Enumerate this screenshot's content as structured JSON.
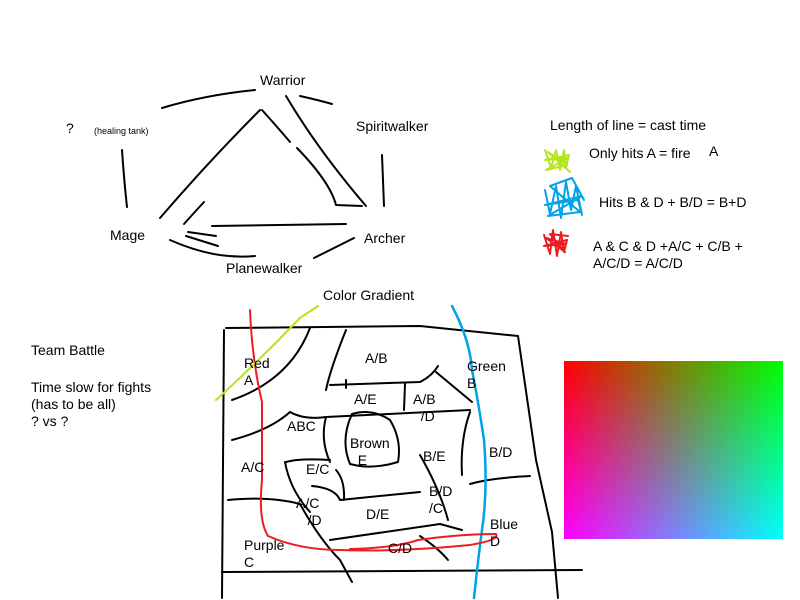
{
  "top_diagram": {
    "warrior": "Warrior",
    "spiritwalker": "Spiritwalker",
    "archer": "Archer",
    "planewalker": "Planewalker",
    "mage": "Mage",
    "unknown": "?",
    "unknown_note": "(healing tank)"
  },
  "legend": {
    "title": "Length of line = cast time",
    "items": [
      {
        "text": "Only hits A = fire",
        "suffix": "A",
        "color": "#b5e61d"
      },
      {
        "text": "Hits B & D + B/D = B+D",
        "color": "#00a2e8"
      },
      {
        "text": "A & C & D +A/C + C/B +\nA/C/D = A/C/D",
        "color": "#ed1c24"
      }
    ]
  },
  "gradient_title": "Color Gradient",
  "team_battle": "Team Battle",
  "time_slow": "Time slow for fights\n(has to be all)\n? vs ?",
  "regions": {
    "red": "Red\nA",
    "ab": "A/B",
    "green": "Green\nB",
    "ae": "A/E",
    "abd": "A/B\n  /D",
    "abc": "ABC",
    "brown": "Brown\n  E",
    "bd": "B/D",
    "ac": "A/C",
    "ec": "E/C",
    "be": "B/E",
    "bdc": "B/D\n/C",
    "acd": "A/C\n   /D",
    "de": "D/E",
    "blue": "Blue\nD",
    "purple": "Purple\nC",
    "cd": "C/D"
  },
  "colors": {
    "ink": "#000000",
    "fire_yellow_green": "#b5e61d",
    "water_blue": "#00a2e8",
    "red": "#ed1c24",
    "gradient_red": "#ff0000",
    "gradient_green": "#00ff00",
    "gradient_magenta": "#ff00ff",
    "gradient_cyan": "#00ffff"
  }
}
